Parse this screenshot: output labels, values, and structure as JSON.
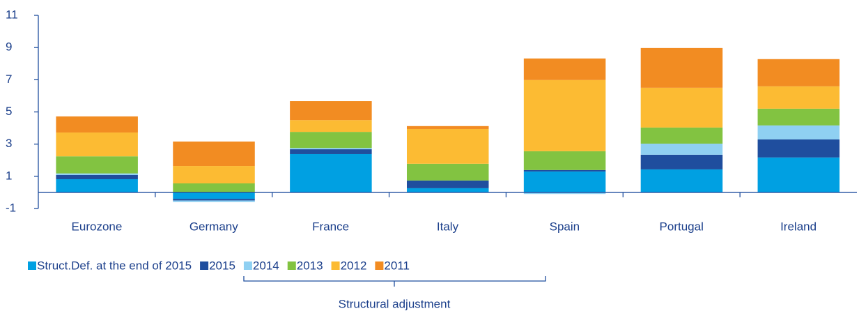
{
  "chart_data": {
    "type": "stacked_bar",
    "categories": [
      "Eurozone",
      "Germany",
      "France",
      "Italy",
      "Spain",
      "Portugal",
      "Ireland"
    ],
    "series": [
      {
        "name": "Struct.Def. at the end of 2015",
        "color": "#00a0e2",
        "values": [
          0.82,
          -0.4,
          2.38,
          0.26,
          1.3,
          1.43,
          2.17
        ]
      },
      {
        "name": "2015",
        "color": "#1f4e9e",
        "values": [
          0.26,
          -0.1,
          0.3,
          0.48,
          0.09,
          0.91,
          1.12
        ]
      },
      {
        "name": "2014",
        "color": "#8fd0f2",
        "values": [
          0.1,
          -0.1,
          0.08,
          0,
          -0.1,
          0.69,
          0.87
        ]
      },
      {
        "name": "2013",
        "color": "#82c341",
        "values": [
          1.06,
          0.56,
          1.0,
          1.04,
          1.17,
          1.0,
          1.04
        ]
      },
      {
        "name": "2012",
        "color": "#fcbb33",
        "values": [
          1.48,
          1.08,
          0.73,
          2.16,
          4.42,
          2.47,
          1.39
        ]
      },
      {
        "name": "2011",
        "color": "#f28c22",
        "values": [
          1.0,
          1.52,
          1.18,
          0.18,
          1.34,
          2.47,
          1.69
        ]
      }
    ],
    "annotation": "Structural adjustment",
    "ylim": [
      -1,
      11
    ],
    "yticks": [
      -1,
      1,
      3,
      5,
      7,
      9,
      11
    ]
  }
}
